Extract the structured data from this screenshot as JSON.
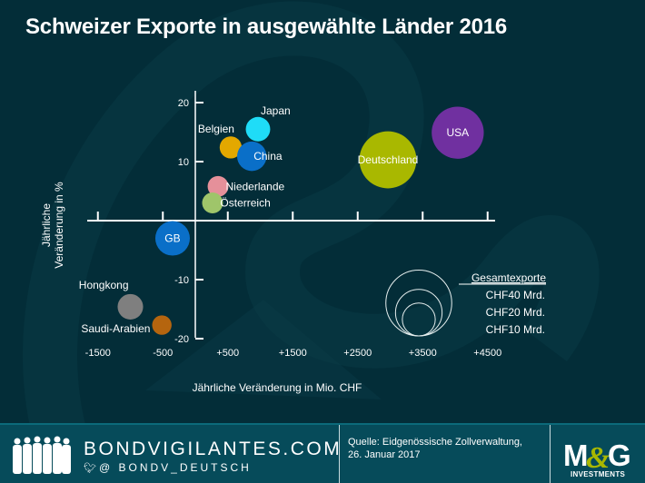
{
  "header": {
    "title": "Schweizer Exporte in ausgewählte Länder 2016"
  },
  "chart_data": {
    "type": "scatter",
    "subtype": "bubble",
    "title": "Schweizer Exporte in ausgewählte Länder 2016",
    "xlabel": "Jährliche Veränderung in Mio. CHF",
    "ylabel": "Jährliche Veränderung in %",
    "xlim": [
      -1800,
      4700
    ],
    "ylim": [
      -21,
      21
    ],
    "x_ticks": [
      -1500,
      -500,
      500,
      1500,
      2500,
      3500,
      4500
    ],
    "x_tick_labels": [
      "-1500",
      "-500",
      "+500",
      "+1500",
      "+2500",
      "+3500",
      "+4500"
    ],
    "y_ticks": [
      20,
      10,
      -10,
      -20
    ],
    "y_tick_labels": [
      "20",
      "10",
      "-10",
      "-20"
    ],
    "grid": false,
    "size_legend": {
      "title": "Gesamtexporte",
      "entries": [
        {
          "label": "CHF40 Mrd.",
          "value": 40
        },
        {
          "label": "CHF20 Mrd.",
          "value": 20
        },
        {
          "label": "CHF10 Mrd.",
          "value": 10
        }
      ],
      "placement": "bottom-right"
    },
    "points": [
      {
        "name": "Japan",
        "x": 965,
        "y": 15.5,
        "size": 5.5,
        "color": "#1fdcf7",
        "label_pos": "above-right",
        "label_inside": false
      },
      {
        "name": "Belgien",
        "x": 545,
        "y": 12.4,
        "size": 4.5,
        "color": "#e3a800",
        "label_pos": "above-left",
        "label_inside": false
      },
      {
        "name": "China",
        "x": 870,
        "y": 10.9,
        "size": 8,
        "color": "#0a6fc8",
        "label_pos": "right",
        "label_inside": false
      },
      {
        "name": "Niederlande",
        "x": 350,
        "y": 5.8,
        "size": 4,
        "color": "#e5909a",
        "label_pos": "right",
        "label_inside": false
      },
      {
        "name": "Österreich",
        "x": 265,
        "y": 3,
        "size": 4,
        "color": "#9fc56a",
        "label_pos": "right",
        "label_inside": false
      },
      {
        "name": "GB",
        "x": -350,
        "y": -3,
        "size": 11,
        "color": "#0a6fc8",
        "label_pos": "center",
        "label_inside": true
      },
      {
        "name": "Hongkong",
        "x": -1000,
        "y": -14.6,
        "size": 6,
        "color": "#7f7f7f",
        "label_pos": "above-left",
        "label_inside": false
      },
      {
        "name": "Saudi-Arabien",
        "x": -515,
        "y": -17.7,
        "size": 3.5,
        "color": "#b5650f",
        "label_pos": "left",
        "label_inside": false
      },
      {
        "name": "Deutschland",
        "x": 2965,
        "y": 10.3,
        "size": 30,
        "color": "#a9b800",
        "label_pos": "center",
        "label_inside": true
      },
      {
        "name": "USA",
        "x": 4040,
        "y": 14.9,
        "size": 25,
        "color": "#7030a0",
        "label_pos": "center",
        "label_inside": true
      }
    ]
  },
  "footer": {
    "brand": "BONDVIGILANTES.COM",
    "twitter_handle": "@ BONDV_DEUTSCH",
    "source_line1": "Quelle: Eidgenössische Zollverwaltung,",
    "source_line2": "26. Januar 2017",
    "logo_text": "M&G",
    "logo_subtext": "INVESTMENTS"
  },
  "colors": {
    "background": "#032d38",
    "footer": "#064b5a",
    "axis": "#ffffff",
    "logo_accent": "#a9b800"
  }
}
